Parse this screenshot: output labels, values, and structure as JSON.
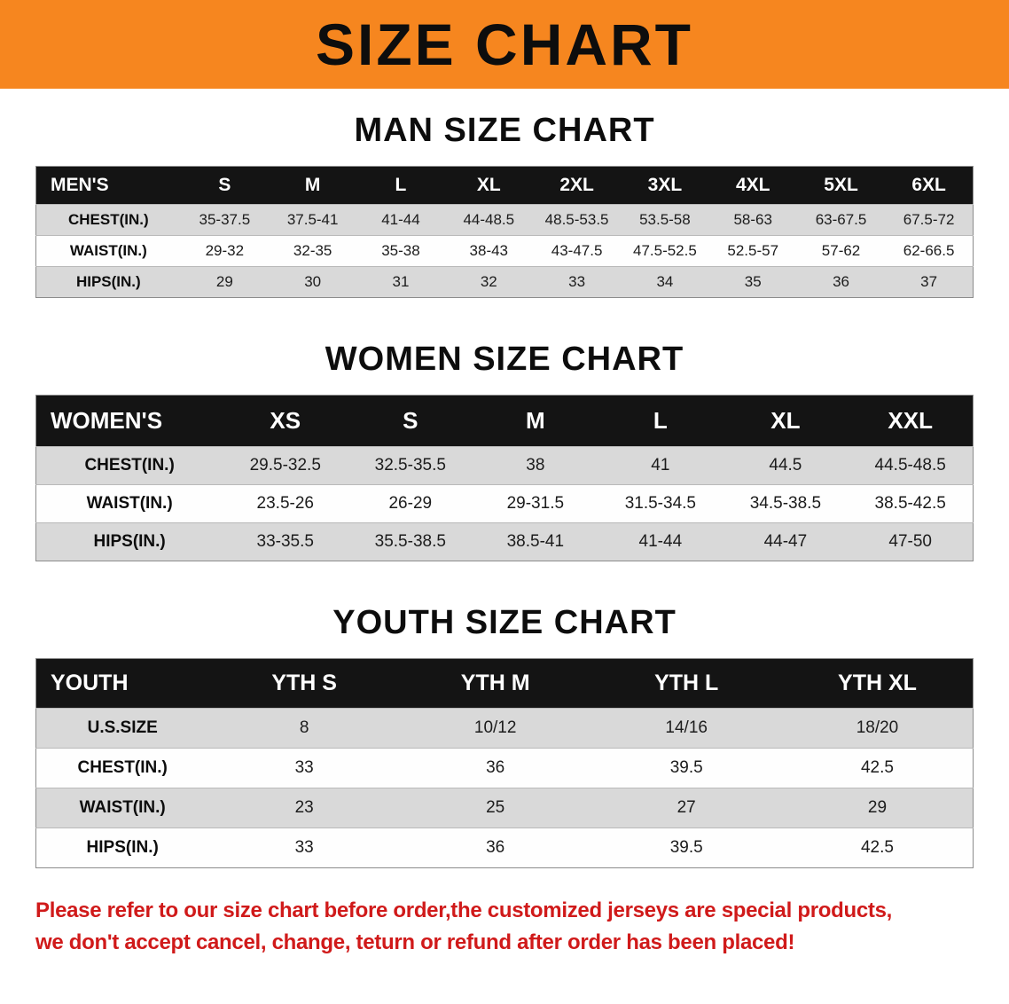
{
  "banner": {
    "title": "SIZE CHART",
    "bg_color": "#f6861f"
  },
  "chart_data": [
    {
      "type": "table",
      "id": "men",
      "title": "MAN SIZE CHART",
      "columns": [
        "MEN'S",
        "S",
        "M",
        "L",
        "XL",
        "2XL",
        "3XL",
        "4XL",
        "5XL",
        "6XL"
      ],
      "rows": [
        [
          "CHEST(IN.)",
          "35-37.5",
          "37.5-41",
          "41-44",
          "44-48.5",
          "48.5-53.5",
          "53.5-58",
          "58-63",
          "63-67.5",
          "67.5-72"
        ],
        [
          "WAIST(IN.)",
          "29-32",
          "32-35",
          "35-38",
          "38-43",
          "43-47.5",
          "47.5-52.5",
          "52.5-57",
          "57-62",
          "62-66.5"
        ],
        [
          "HIPS(IN.)",
          "29",
          "30",
          "31",
          "32",
          "33",
          "34",
          "35",
          "36",
          "37"
        ]
      ]
    },
    {
      "type": "table",
      "id": "women",
      "title": "WOMEN SIZE CHART",
      "columns": [
        "WOMEN'S",
        "XS",
        "S",
        "M",
        "L",
        "XL",
        "XXL"
      ],
      "rows": [
        [
          "CHEST(IN.)",
          "29.5-32.5",
          "32.5-35.5",
          "38",
          "41",
          "44.5",
          "44.5-48.5"
        ],
        [
          "WAIST(IN.)",
          "23.5-26",
          "26-29",
          "29-31.5",
          "31.5-34.5",
          "34.5-38.5",
          "38.5-42.5"
        ],
        [
          "HIPS(IN.)",
          "33-35.5",
          "35.5-38.5",
          "38.5-41",
          "41-44",
          "44-47",
          "47-50"
        ]
      ]
    },
    {
      "type": "table",
      "id": "youth",
      "title": "YOUTH SIZE CHART",
      "columns": [
        "YOUTH",
        "YTH S",
        "YTH M",
        "YTH L",
        "YTH XL"
      ],
      "rows": [
        [
          "U.S.SIZE",
          "8",
          "10/12",
          "14/16",
          "18/20"
        ],
        [
          "CHEST(IN.)",
          "33",
          "36",
          "39.5",
          "42.5"
        ],
        [
          "WAIST(IN.)",
          "23",
          "25",
          "27",
          "29"
        ],
        [
          "HIPS(IN.)",
          "33",
          "36",
          "39.5",
          "42.5"
        ]
      ]
    }
  ],
  "disclaimer": {
    "line1": "Please refer to our size chart before order,the customized jerseys are special products,",
    "line2": "we don't accept cancel, change, teturn or refund after order has been placed!",
    "color": "#d01a1a"
  }
}
